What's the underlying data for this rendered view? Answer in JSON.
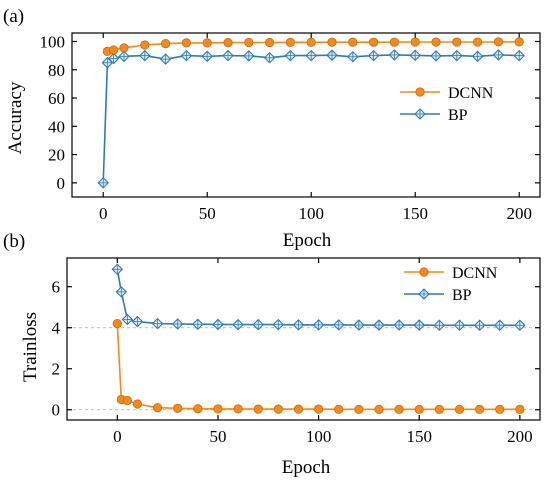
{
  "colors": {
    "dcnn": "#F28A1D",
    "bp": "#2F7CB0",
    "axis": "#000000",
    "refline": "#AAAAAA"
  },
  "chart_data": [
    {
      "type": "line",
      "panel_label": "(a)",
      "xlabel": "Epoch",
      "ylabel": "Accuracy",
      "xlim": [
        -15,
        210
      ],
      "ylim": [
        -10,
        106
      ],
      "xticks": [
        0,
        50,
        100,
        150,
        200
      ],
      "yticks": [
        0,
        20,
        40,
        60,
        80,
        100
      ],
      "grid": false,
      "legend_position": "right",
      "series": [
        {
          "name": "DCNN",
          "marker": "circle",
          "color": "#F28A1D",
          "x": [
            2,
            5,
            10,
            20,
            30,
            40,
            50,
            60,
            70,
            80,
            90,
            100,
            110,
            120,
            130,
            140,
            150,
            160,
            170,
            180,
            190,
            200
          ],
          "y": [
            93,
            94,
            95.5,
            97.5,
            98.5,
            99,
            99,
            99.2,
            99.3,
            99.3,
            99.4,
            99.4,
            99.5,
            99.5,
            99.5,
            99.5,
            99.6,
            99.6,
            99.6,
            99.6,
            99.7,
            99.7
          ]
        },
        {
          "name": "BP",
          "marker": "diamond",
          "color": "#2F7CB0",
          "x": [
            0,
            2,
            5,
            10,
            20,
            30,
            40,
            50,
            60,
            70,
            80,
            90,
            100,
            110,
            120,
            130,
            140,
            150,
            160,
            170,
            180,
            190,
            200
          ],
          "y": [
            0,
            85,
            88,
            89.5,
            90,
            87.5,
            90,
            89.5,
            90,
            89.8,
            88.5,
            90,
            90,
            90.3,
            89.2,
            90,
            90.5,
            90.2,
            89.8,
            90,
            89.5,
            90.5,
            90
          ]
        }
      ]
    },
    {
      "type": "line",
      "panel_label": "(b)",
      "xlabel": "Epoch",
      "ylabel": "Trainloss",
      "xlim": [
        -25,
        210
      ],
      "ylim": [
        -0.5,
        7.4
      ],
      "xticks": [
        0,
        50,
        100,
        150,
        200
      ],
      "yticks": [
        0,
        2,
        4,
        6
      ],
      "reference_lines_y": [
        4,
        0
      ],
      "grid": false,
      "legend_position": "top-right",
      "series": [
        {
          "name": "DCNN",
          "marker": "circle",
          "color": "#F28A1D",
          "x": [
            0,
            2,
            5,
            10,
            20,
            30,
            40,
            50,
            60,
            70,
            80,
            90,
            100,
            110,
            120,
            130,
            140,
            150,
            160,
            170,
            180,
            190,
            200
          ],
          "y": [
            4.2,
            0.5,
            0.45,
            0.28,
            0.1,
            0.07,
            0.05,
            0.04,
            0.04,
            0.03,
            0.03,
            0.03,
            0.03,
            0.02,
            0.02,
            0.02,
            0.02,
            0.02,
            0.02,
            0.02,
            0.02,
            0.02,
            0.02
          ]
        },
        {
          "name": "BP",
          "marker": "diamond",
          "color": "#2F7CB0",
          "x": [
            0,
            2,
            5,
            10,
            20,
            30,
            40,
            50,
            60,
            70,
            80,
            90,
            100,
            110,
            120,
            130,
            140,
            150,
            160,
            170,
            180,
            190,
            200
          ],
          "y": [
            6.85,
            5.75,
            4.4,
            4.3,
            4.2,
            4.18,
            4.17,
            4.16,
            4.15,
            4.15,
            4.15,
            4.14,
            4.14,
            4.14,
            4.13,
            4.13,
            4.13,
            4.13,
            4.12,
            4.12,
            4.12,
            4.12,
            4.12
          ]
        }
      ]
    }
  ]
}
